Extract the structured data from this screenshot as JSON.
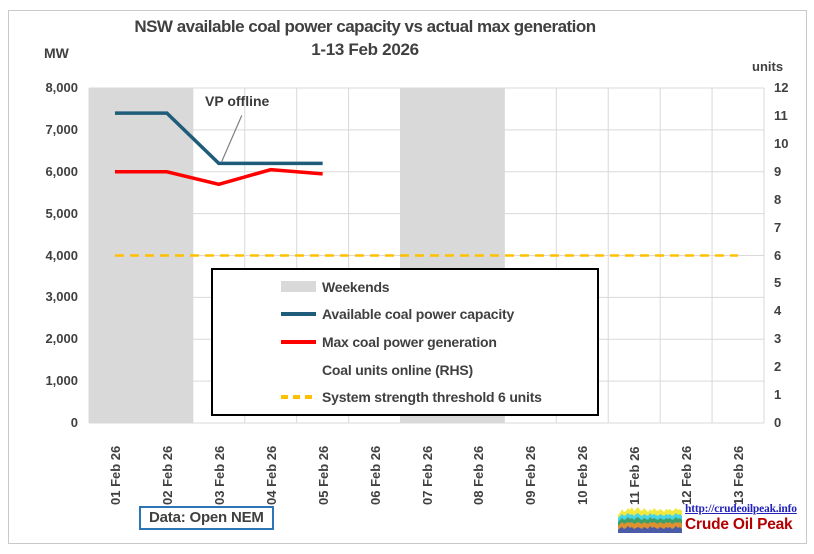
{
  "title": {
    "line1": "NSW available coal power capacity vs actual max generation",
    "line2": "1-13 Feb 2026"
  },
  "axes": {
    "left_unit_label": "MW",
    "right_unit_label": "units",
    "left_ticks": [
      "8,000",
      "7,000",
      "6,000",
      "5,000",
      "4,000",
      "3,000",
      "2,000",
      "1,000",
      "0"
    ],
    "right_ticks": [
      "12",
      "11",
      "10",
      "9",
      "8",
      "7",
      "6",
      "5",
      "4",
      "3",
      "2",
      "1",
      "0"
    ]
  },
  "chart_data": {
    "type": "line",
    "categories": [
      "01 Feb 26",
      "02 Feb 26",
      "03 Feb 26",
      "04 Feb 26",
      "05 Feb 26",
      "06 Feb 26",
      "07 Feb 26",
      "08 Feb 26",
      "09 Feb 26",
      "10 Feb 26",
      "11 Feb 26",
      "12 Feb 26",
      "13 Feb 26"
    ],
    "ylim_left": [
      0,
      8000
    ],
    "ylim_right": [
      0,
      12
    ],
    "grid": true,
    "gridline_color": "#D9D9D9",
    "weekend_categories": [
      0,
      1,
      6,
      7
    ],
    "weekend_color": "#D9D9D9",
    "series": [
      {
        "name": "Available coal power capacity",
        "axis": "left",
        "color": "#1F5C7A",
        "style": "solid",
        "width": 3.5,
        "values": [
          7400,
          7400,
          6200,
          6200,
          6200
        ]
      },
      {
        "name": "Max coal power generation",
        "axis": "left",
        "color": "#FF0000",
        "style": "solid",
        "width": 3.5,
        "values": [
          6000,
          6000,
          5700,
          6050,
          5950
        ]
      },
      {
        "name": "Coal units online (RHS)",
        "axis": "right",
        "style": "none",
        "values": []
      },
      {
        "name": "System strength threshold 6 units",
        "axis": "right",
        "color": "#FFC000",
        "style": "dashed",
        "width": 2.5,
        "values": [
          6,
          6,
          6,
          6,
          6,
          6,
          6,
          6,
          6,
          6,
          6,
          6,
          6
        ]
      }
    ]
  },
  "annotation": {
    "text": "VP offline",
    "target_category": "03 Feb 26",
    "target_series": "Available coal power capacity",
    "target_value": 6200
  },
  "legend": {
    "items": [
      {
        "swatch": "weekend-band",
        "label": "Weekends"
      },
      {
        "swatch": "solid-blue-line",
        "label": "Available coal power capacity"
      },
      {
        "swatch": "solid-red-line",
        "label": "Max coal power generation"
      },
      {
        "swatch": "none",
        "label": "Coal units online (RHS)"
      },
      {
        "swatch": "dashed-gold-line",
        "label": "System strength threshold 6 units"
      }
    ]
  },
  "footer": {
    "source_label": "Data: Open NEM"
  },
  "logo": {
    "link_text": "http://crudeoilpeak.info",
    "name": "Crude Oil Peak"
  }
}
